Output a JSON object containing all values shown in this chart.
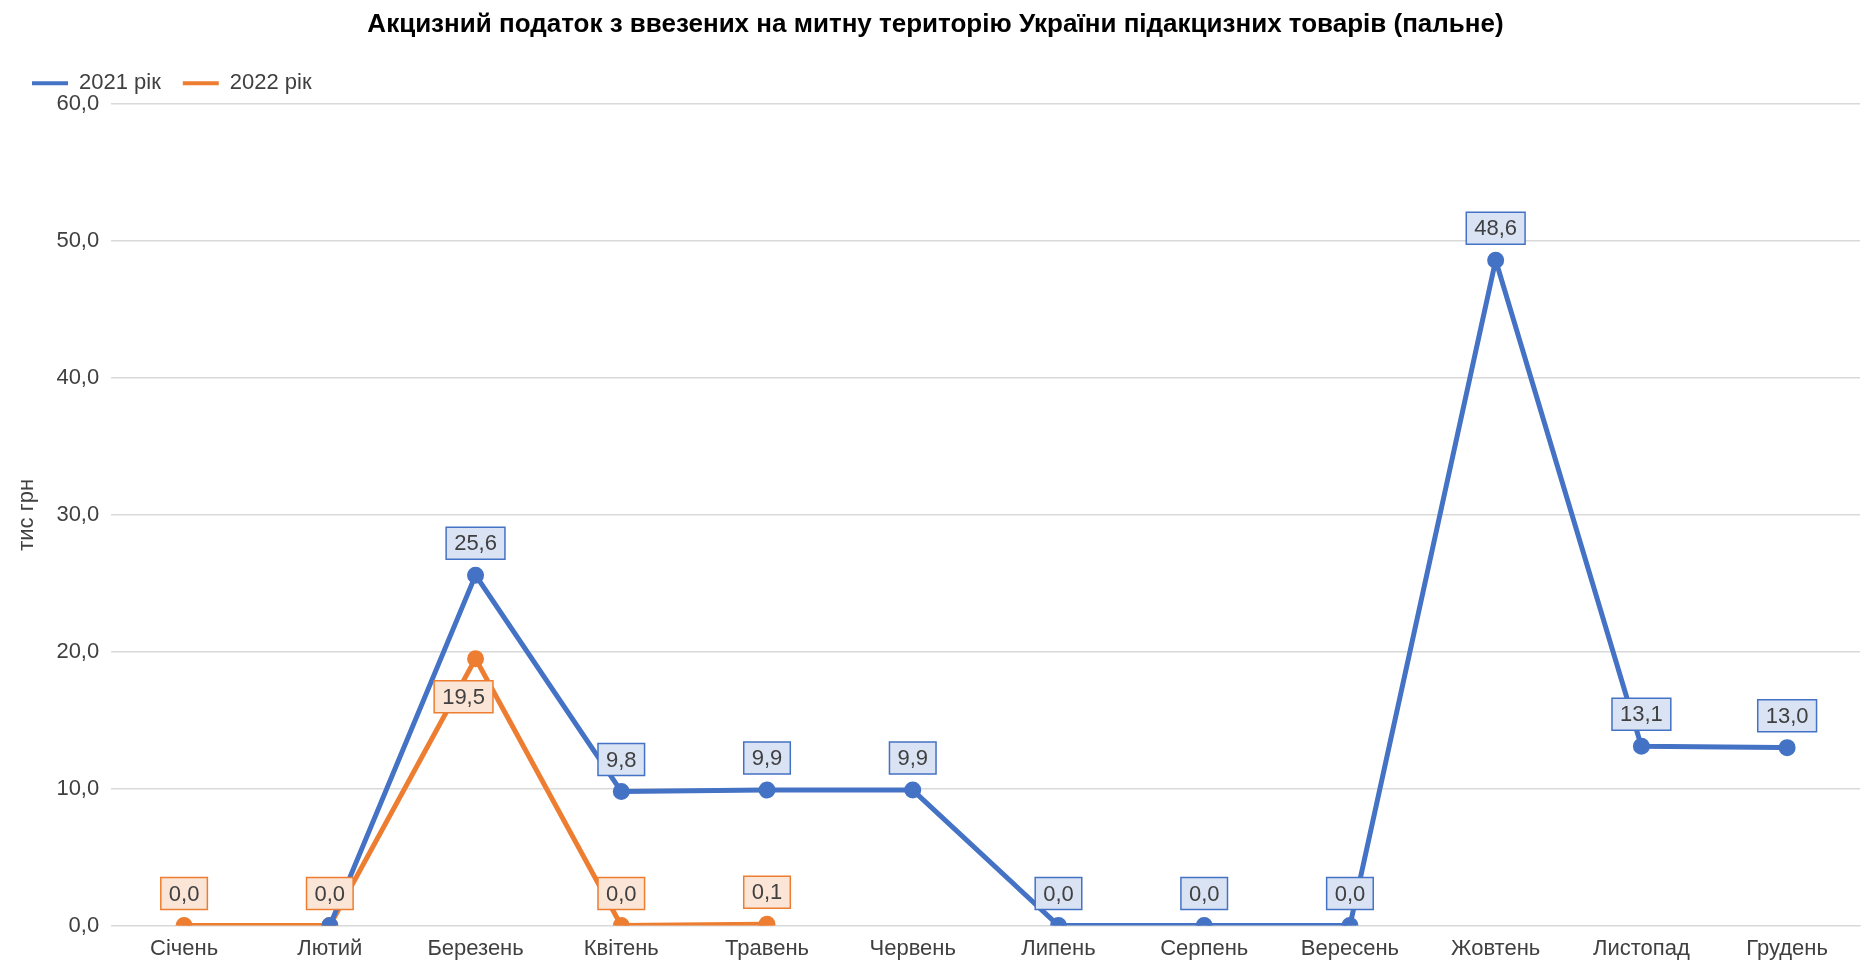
{
  "chart_data": {
    "type": "line",
    "title": "Акцизний податок з ввезених на митну територію України підакцизних товарів (пальне)",
    "ylabel": "тис грн",
    "categories": [
      "Січень",
      "Лютий",
      "Березень",
      "Квітень",
      "Травень",
      "Червень",
      "Липень",
      "Серпень",
      "Вересень",
      "Жовтень",
      "Листопад",
      "Грудень"
    ],
    "series": [
      {
        "name": "2021 рік",
        "color": "#4472c4",
        "values": [
          null,
          0.0,
          25.6,
          9.8,
          9.9,
          9.9,
          0.0,
          0.0,
          0.0,
          48.6,
          13.1,
          13.0
        ],
        "value_labels": [
          null,
          null,
          "25,6",
          "9,8",
          "9,9",
          "9,9",
          "0,0",
          "0,0",
          "0,0",
          "48,6",
          "13,1",
          "13,0"
        ]
      },
      {
        "name": "2022 рік",
        "color": "#ed7d31",
        "values": [
          0.0,
          0.0,
          19.5,
          0.0,
          0.1,
          null,
          null,
          null,
          null,
          null,
          null,
          null
        ],
        "value_labels": [
          "0,0",
          "0,0",
          "19,5",
          "0,0",
          "0,1",
          null,
          null,
          null,
          null,
          null,
          null,
          null
        ]
      }
    ],
    "ylim": [
      0,
      60
    ],
    "yticks": [
      {
        "value": 0,
        "label": "0,0"
      },
      {
        "value": 10,
        "label": "10,0"
      },
      {
        "value": 20,
        "label": "20,0"
      },
      {
        "value": 30,
        "label": "30,0"
      },
      {
        "value": 40,
        "label": "40,0"
      },
      {
        "value": 50,
        "label": "50,0"
      },
      {
        "value": 60,
        "label": "60,0"
      }
    ],
    "grid": "y",
    "legend": "top left",
    "marker": "circle",
    "line_style": "solid"
  }
}
